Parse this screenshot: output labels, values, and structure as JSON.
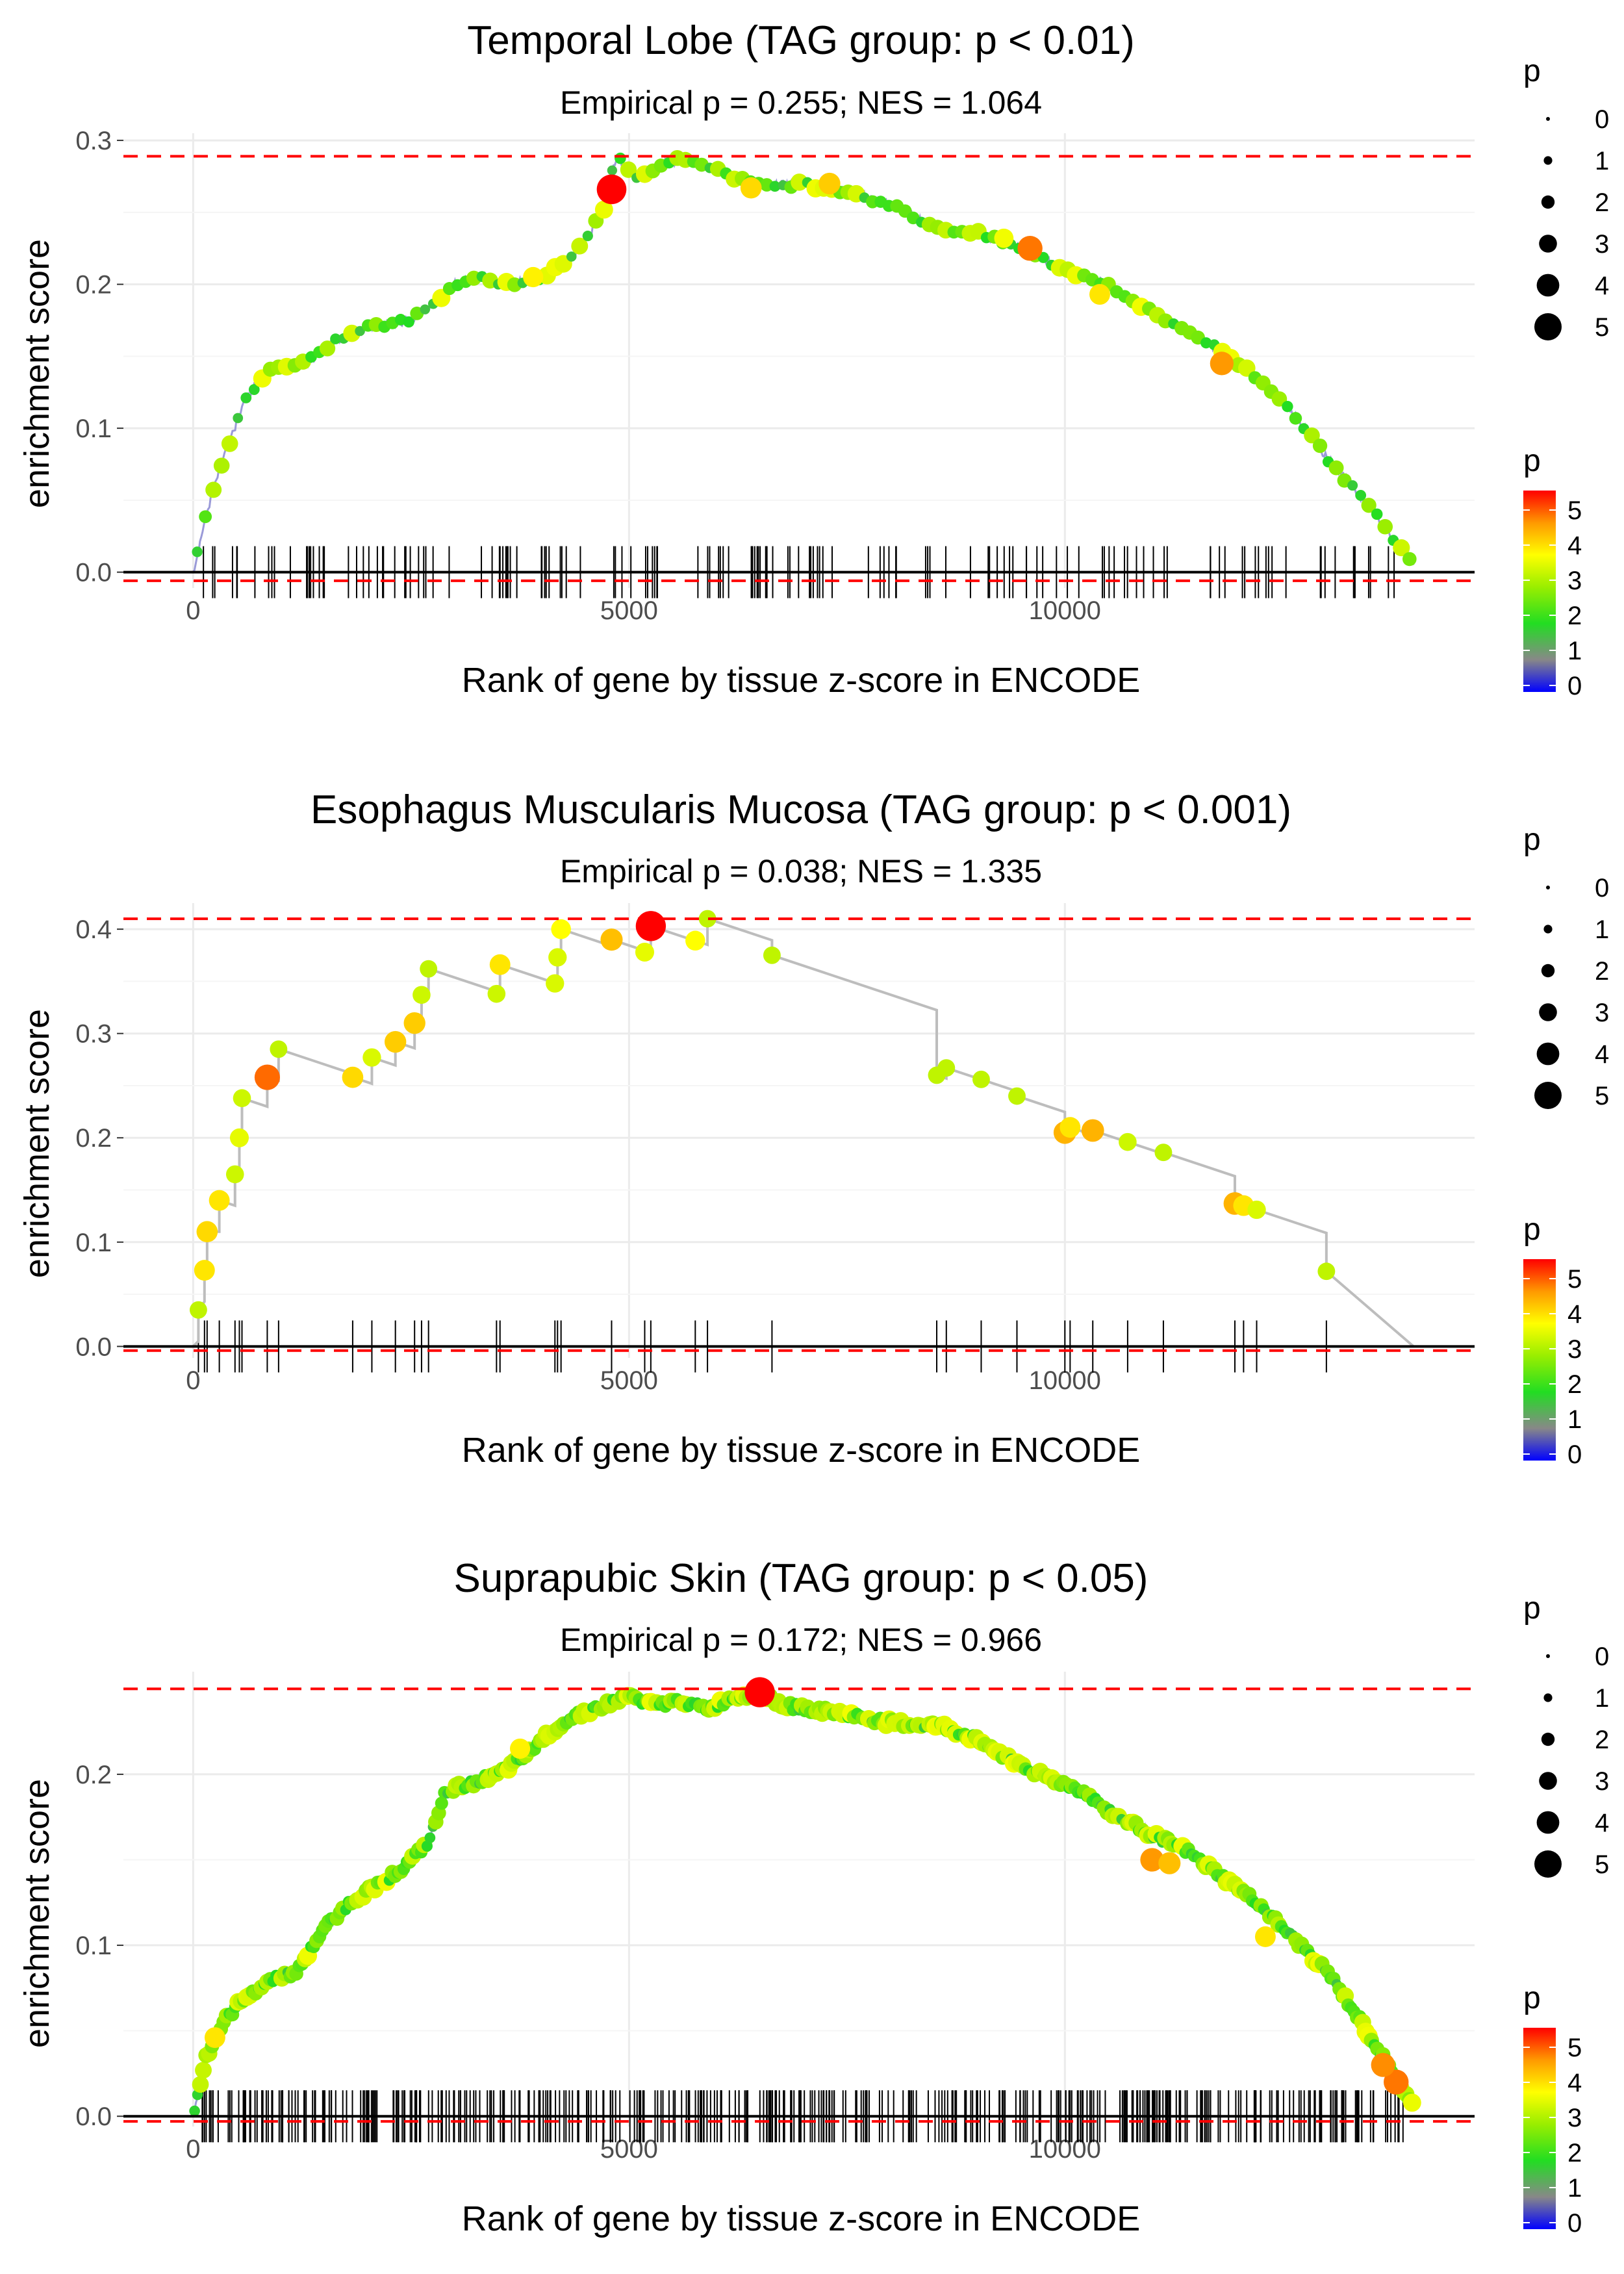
{
  "chart_data": [
    {
      "type": "line",
      "title": "Temporal Lobe (TAG group: p < 0.01)",
      "subtitle": "Empirical p = 0.255; NES = 1.064",
      "xlabel": "Rank of gene by tissue z-score in ENCODE",
      "ylabel": "enrichment score",
      "xlim": [
        -800,
        14700
      ],
      "ylim": [
        -0.011,
        0.305
      ],
      "xticks": [
        0,
        5000,
        10000
      ],
      "xtick_labels": [
        "0",
        "5000",
        "10000"
      ],
      "yticks": [
        0,
        0.1,
        0.2,
        0.3
      ],
      "ytick_labels": [
        "0.0",
        "0.1",
        "0.2",
        "0.3"
      ],
      "max_es": 0.289,
      "min_es": -0.006,
      "x_end": 14000,
      "nticks": 150,
      "shape": {
        "x": [
          0,
          150,
          350,
          600,
          850,
          1300,
          1600,
          2000,
          2500,
          3000,
          3300,
          3600,
          4000,
          4300,
          4700,
          4850,
          5100,
          5400,
          5700,
          6000,
          6500,
          7000,
          7500,
          8000,
          8500,
          9000,
          9500,
          10000,
          10500,
          11000,
          11500,
          12000,
          12500,
          13000,
          13500,
          14000
        ],
        "y": [
          0.0,
          0.04,
          0.08,
          0.12,
          0.14,
          0.145,
          0.16,
          0.17,
          0.175,
          0.2,
          0.205,
          0.2,
          0.205,
          0.215,
          0.25,
          0.289,
          0.275,
          0.285,
          0.287,
          0.28,
          0.268,
          0.27,
          0.265,
          0.255,
          0.24,
          0.235,
          0.225,
          0.21,
          0.2,
          0.18,
          0.165,
          0.145,
          0.12,
          0.08,
          0.045,
          0.005
        ]
      },
      "big_points": [
        {
          "x": 4800,
          "y": 0.266,
          "p": 5.5
        },
        {
          "x": 9600,
          "y": 0.225,
          "p": 4.5
        },
        {
          "x": 11800,
          "y": 0.145,
          "p": 4.2
        },
        {
          "x": 7300,
          "y": 0.27,
          "p": 3.8
        },
        {
          "x": 6400,
          "y": 0.267,
          "p": 3.7
        },
        {
          "x": 10400,
          "y": 0.193,
          "p": 3.6
        },
        {
          "x": 3900,
          "y": 0.205,
          "p": 3.5
        },
        {
          "x": 9300,
          "y": 0.232,
          "p": 3.3
        }
      ],
      "legend_size": {
        "title": "p",
        "labels": [
          "0",
          "1",
          "2",
          "3",
          "4",
          "5"
        ]
      },
      "legend_color": {
        "title": "p",
        "labels": [
          "5",
          "4",
          "3",
          "2",
          "1",
          "0"
        ]
      }
    },
    {
      "type": "line",
      "title": "Esophagus Muscularis Mucosa (TAG group: p < 0.001)",
      "subtitle": "Empirical p = 0.038; NES = 1.335",
      "xlabel": "Rank of gene by tissue z-score in ENCODE",
      "ylabel": "enrichment score",
      "xlim": [
        -800,
        14700
      ],
      "ylim": [
        -0.011,
        0.425
      ],
      "xticks": [
        0,
        5000,
        10000
      ],
      "xtick_labels": [
        "0",
        "5000",
        "10000"
      ],
      "yticks": [
        0,
        0.1,
        0.2,
        0.3,
        0.4
      ],
      "ytick_labels": [
        "0.0",
        "0.1",
        "0.2",
        "0.3",
        "0.4"
      ],
      "max_es": 0.41,
      "min_es": -0.004,
      "x_end": 14000,
      "steps": [
        {
          "x": 60,
          "y": 0.035,
          "p": 2.9
        },
        {
          "x": 130,
          "y": 0.073,
          "p": 3.6
        },
        {
          "x": 160,
          "y": 0.11,
          "p": 3.7
        },
        {
          "x": 300,
          "y": 0.14,
          "p": 3.6
        },
        {
          "x": 480,
          "y": 0.165,
          "p": 3.0
        },
        {
          "x": 530,
          "y": 0.2,
          "p": 3.2
        },
        {
          "x": 560,
          "y": 0.238,
          "p": 3.0
        },
        {
          "x": 850,
          "y": 0.258,
          "p": 4.6
        },
        {
          "x": 980,
          "y": 0.285,
          "p": 2.9
        },
        {
          "x": 1830,
          "y": 0.258,
          "p": 3.7
        },
        {
          "x": 2050,
          "y": 0.277,
          "p": 3.1
        },
        {
          "x": 2320,
          "y": 0.292,
          "p": 3.8
        },
        {
          "x": 2540,
          "y": 0.31,
          "p": 3.8
        },
        {
          "x": 2620,
          "y": 0.337,
          "p": 3.0
        },
        {
          "x": 2700,
          "y": 0.362,
          "p": 2.9
        },
        {
          "x": 3480,
          "y": 0.338,
          "p": 3.0
        },
        {
          "x": 3520,
          "y": 0.366,
          "p": 3.6
        },
        {
          "x": 4150,
          "y": 0.348,
          "p": 3.1
        },
        {
          "x": 4180,
          "y": 0.373,
          "p": 3.1
        },
        {
          "x": 4220,
          "y": 0.4,
          "p": 3.4
        },
        {
          "x": 4800,
          "y": 0.39,
          "p": 3.9
        },
        {
          "x": 5180,
          "y": 0.378,
          "p": 3.2
        },
        {
          "x": 5250,
          "y": 0.403,
          "p": 5.6
        },
        {
          "x": 5760,
          "y": 0.389,
          "p": 3.4
        },
        {
          "x": 5900,
          "y": 0.41,
          "p": 2.9
        },
        {
          "x": 6640,
          "y": 0.375,
          "p": 2.9
        },
        {
          "x": 8530,
          "y": 0.26,
          "p": 2.9
        },
        {
          "x": 8640,
          "y": 0.267,
          "p": 2.9
        },
        {
          "x": 9040,
          "y": 0.256,
          "p": 2.9
        },
        {
          "x": 9450,
          "y": 0.24,
          "p": 2.9
        },
        {
          "x": 10000,
          "y": 0.205,
          "p": 4.0
        },
        {
          "x": 10060,
          "y": 0.21,
          "p": 3.6
        },
        {
          "x": 10320,
          "y": 0.207,
          "p": 4.0
        },
        {
          "x": 10720,
          "y": 0.196,
          "p": 3.0
        },
        {
          "x": 11130,
          "y": 0.186,
          "p": 2.9
        },
        {
          "x": 11950,
          "y": 0.137,
          "p": 4.0
        },
        {
          "x": 12050,
          "y": 0.135,
          "p": 3.6
        },
        {
          "x": 12200,
          "y": 0.131,
          "p": 3.1
        },
        {
          "x": 13000,
          "y": 0.072,
          "p": 2.9
        }
      ],
      "legend_size": {
        "title": "p",
        "labels": [
          "0",
          "1",
          "2",
          "3",
          "4",
          "5"
        ]
      },
      "legend_color": {
        "title": "p",
        "labels": [
          "5",
          "4",
          "3",
          "2",
          "1",
          "0"
        ]
      }
    },
    {
      "type": "line",
      "title": "Suprapubic Skin (TAG group: p < 0.05)",
      "subtitle": "Empirical p = 0.172; NES = 0.966",
      "xlabel": "Rank of gene by tissue z-score in ENCODE",
      "ylabel": "enrichment score",
      "xlim": [
        -800,
        14700
      ],
      "ylim": [
        -0.006,
        0.26
      ],
      "xticks": [
        0,
        5000,
        10000
      ],
      "xtick_labels": [
        "0",
        "5000",
        "10000"
      ],
      "yticks": [
        0,
        0.1,
        0.2
      ],
      "ytick_labels": [
        "0.0",
        "0.1",
        "0.2"
      ],
      "max_es": 0.25,
      "min_es": -0.003,
      "x_end": 14000,
      "nticks": 420,
      "shape": {
        "x": [
          0,
          150,
          350,
          600,
          900,
          1200,
          1500,
          1800,
          2100,
          2400,
          2700,
          2900,
          3200,
          3500,
          3800,
          4100,
          4400,
          4700,
          5000,
          5300,
          5600,
          5900,
          6200,
          6500,
          6800,
          7100,
          7500,
          8000,
          8600,
          9000,
          9400,
          9800,
          10200,
          10600,
          11000,
          11400,
          11800,
          12200,
          12600,
          13000,
          13400,
          13700,
          14000
        ],
        "y": [
          0.0,
          0.035,
          0.055,
          0.07,
          0.08,
          0.085,
          0.11,
          0.125,
          0.135,
          0.145,
          0.16,
          0.19,
          0.195,
          0.2,
          0.21,
          0.225,
          0.235,
          0.24,
          0.246,
          0.24,
          0.243,
          0.238,
          0.245,
          0.248,
          0.24,
          0.238,
          0.235,
          0.23,
          0.228,
          0.22,
          0.208,
          0.198,
          0.19,
          0.175,
          0.165,
          0.155,
          0.14,
          0.125,
          0.105,
          0.085,
          0.055,
          0.03,
          0.005
        ]
      },
      "big_points": [
        {
          "x": 6500,
          "y": 0.248,
          "p": 5.6
        },
        {
          "x": 13800,
          "y": 0.02,
          "p": 4.5
        },
        {
          "x": 13650,
          "y": 0.03,
          "p": 4.3
        },
        {
          "x": 11000,
          "y": 0.15,
          "p": 4.2
        },
        {
          "x": 11200,
          "y": 0.148,
          "p": 3.9
        },
        {
          "x": 12300,
          "y": 0.105,
          "p": 3.6
        },
        {
          "x": 3750,
          "y": 0.215,
          "p": 3.5
        },
        {
          "x": 250,
          "y": 0.046,
          "p": 3.6
        }
      ],
      "legend_size": {
        "title": "p",
        "labels": [
          "0",
          "1",
          "2",
          "3",
          "4",
          "5"
        ]
      },
      "legend_color": {
        "title": "p",
        "labels": [
          "5",
          "4",
          "3",
          "2",
          "1",
          "0"
        ]
      }
    }
  ]
}
